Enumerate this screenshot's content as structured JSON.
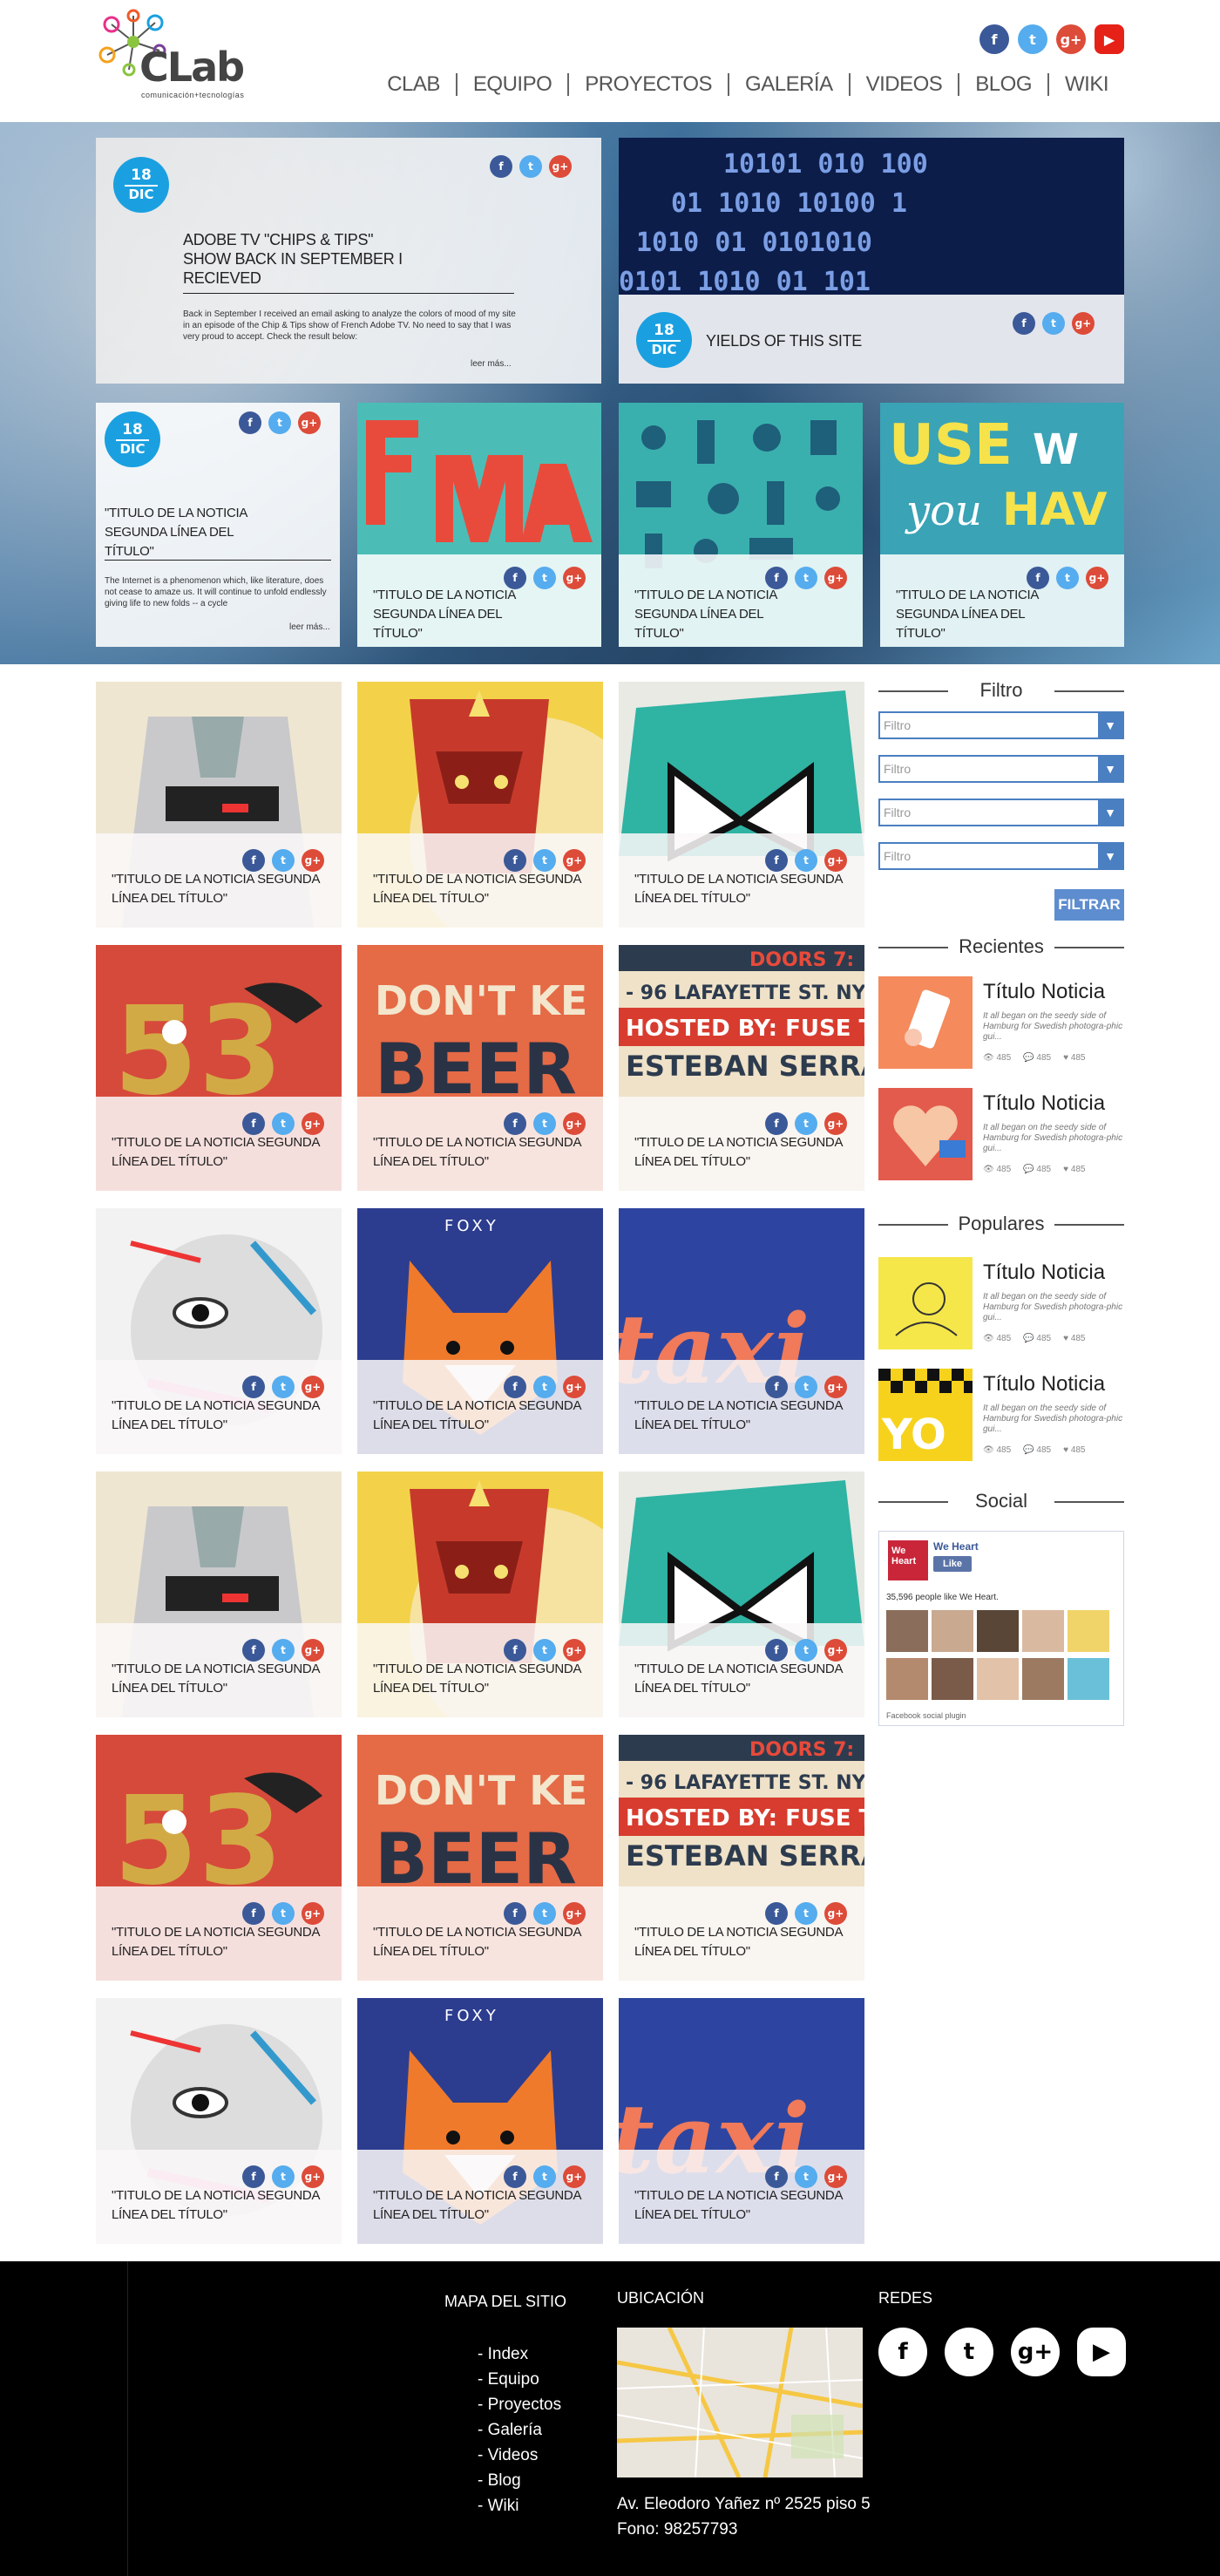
{
  "brand": {
    "name": "CLab",
    "tagline": "comunicación+tecnologías"
  },
  "top_social": [
    "f",
    "t",
    "g+",
    "▶"
  ],
  "nav": [
    "CLAB",
    "EQUIPO",
    "PROYECTOS",
    "GALERÍA",
    "VIDEOS",
    "BLOG",
    "WIKI"
  ],
  "hero": {
    "card1": {
      "day": "18",
      "month": "DIC",
      "title": "ADOBE TV \"CHIPS & TIPS\" SHOW BACK IN SEPTEMBER I RECIEVED",
      "body": "Back in September I received an email asking to analyze the colors of mood of my site in an episode of the Chip & Tips show of French Adobe TV. No need to say that I was very proud to accept. Check the result below:",
      "more": "leer más..."
    },
    "card2": {
      "day": "18",
      "month": "DIC",
      "title": "YIELDS OF THIS SITE"
    },
    "card3": {
      "day": "18",
      "month": "DIC",
      "title": "\"TITULO DE LA NOTICIA SEGUNDA LÍNEA DEL TÍTULO\"",
      "body": "The Internet is a phenomenon which, like literature, does not cease to amaze us. It will continue to unfold endlessly giving life to new folds -- a cycle",
      "more": "leer más..."
    },
    "small_title": "\"TITULO DE LA NOTICIA SEGUNDA LÍNEA DEL TÍTULO\""
  },
  "tile_title": "\"TITULO DE LA NOTICIA SEGUNDA LÍNEA DEL TÍTULO\"",
  "share": {
    "fb": "f",
    "tw": "t",
    "gp": "g+"
  },
  "sidebar": {
    "filter_heading": "Filtro",
    "filters": [
      "Filtro",
      "Filtro",
      "Filtro",
      "Filtro"
    ],
    "filter_button": "FILTRAR",
    "recent_heading": "Recientes",
    "popular_heading": "Populares",
    "social_heading": "Social",
    "news_title": "Título Noticia",
    "news_desc": "It all began on the seedy side of Hamburg for Swedish photogra-phic gui...",
    "stat": "485",
    "fb": {
      "page": "We Heart",
      "like": "Like",
      "count": "35,596 people like We Heart.",
      "plugin": "Facebook social plugin"
    }
  },
  "footer": {
    "map_heading": "MAPA DEL SITIO",
    "links": [
      "- Index",
      "- Equipo",
      "- Proyectos",
      "- Galería",
      "- Videos",
      "- Blog",
      "- Wiki"
    ],
    "location_heading": "UBICACIÓN",
    "address": "Av. Eleodoro Yañez nº 2525 piso 5",
    "phone": "Fono: 98257793",
    "networks_heading": "REDES",
    "networks": [
      "f",
      "t",
      "g+",
      "▶"
    ]
  }
}
